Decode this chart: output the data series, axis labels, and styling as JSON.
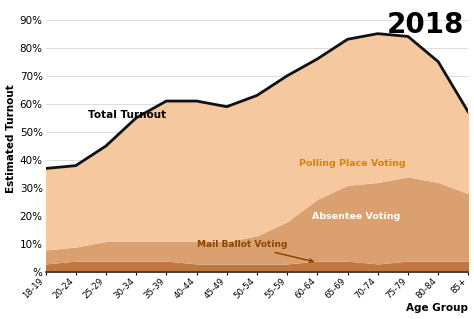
{
  "age_groups": [
    "18-19",
    "20-24",
    "25-29",
    "30-34",
    "35-39",
    "40-44",
    "45-49",
    "50-54",
    "55-59",
    "60-64",
    "65-69",
    "70-74",
    "75-79",
    "80-84",
    "85+"
  ],
  "total_turnout": [
    37,
    38,
    45,
    55,
    61,
    61,
    59,
    63,
    70,
    76,
    83,
    85,
    84,
    75,
    57
  ],
  "polling_place": [
    29,
    29,
    34,
    44,
    50,
    50,
    48,
    50,
    52,
    50,
    52,
    53,
    50,
    43,
    29
  ],
  "absentee": [
    5,
    5,
    7,
    7,
    7,
    8,
    8,
    10,
    15,
    22,
    27,
    29,
    30,
    28,
    24
  ],
  "mail_ballot": [
    3,
    4,
    4,
    4,
    4,
    3,
    3,
    3,
    3,
    4,
    4,
    3,
    4,
    4,
    4
  ],
  "color_total": "#111111",
  "color_polling": "#f5c8a0",
  "color_absentee": "#dba070",
  "color_mail": "#c07840",
  "color_bg": "#ffffff",
  "ylabel": "Estimated Turnout",
  "xlabel": "Age Group",
  "year_label": "2018",
  "label_total": "Total Turnout",
  "label_polling": "Polling Place Voting",
  "label_mail": "Mail Ballot Voting",
  "yticks": [
    0,
    10,
    20,
    30,
    40,
    50,
    60,
    70,
    80,
    90
  ],
  "ytick_labels": [
    "%",
    "10%",
    "20%",
    "30%",
    "40%",
    "50%",
    "60%",
    "70%",
    "80%",
    "90%"
  ]
}
